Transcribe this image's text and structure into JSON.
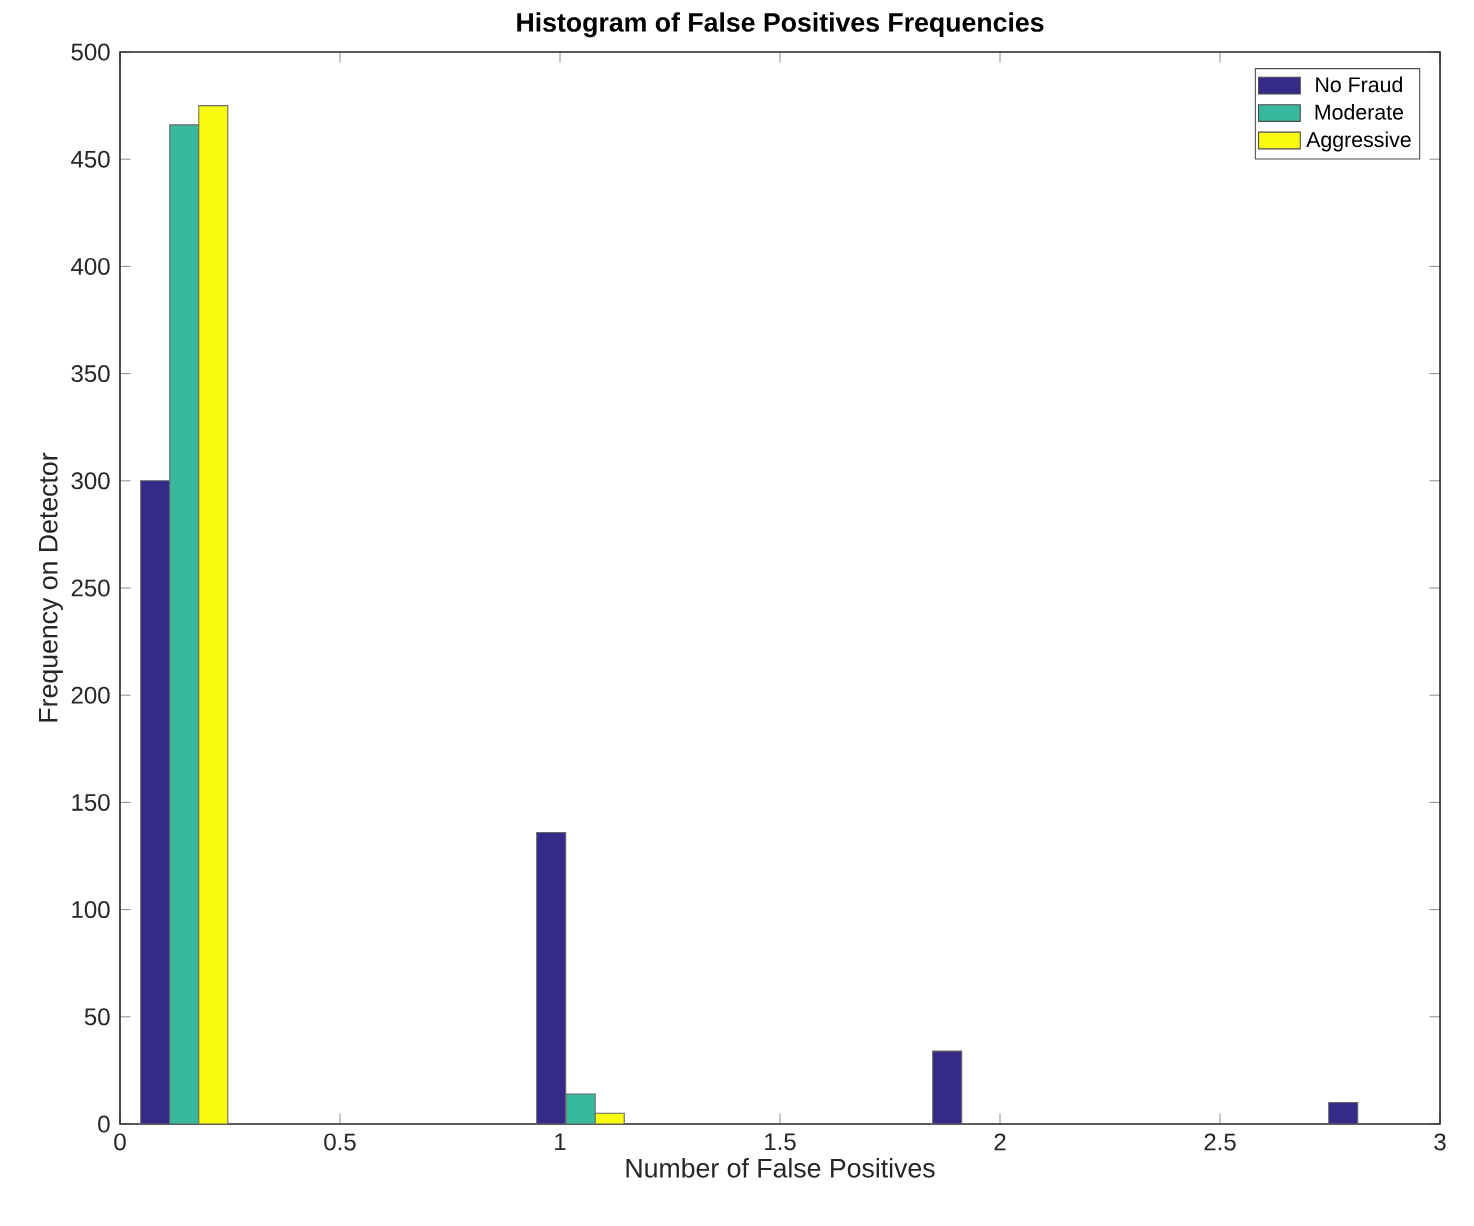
{
  "chart_data": {
    "type": "bar",
    "title": "Histogram of False Positives Frequencies",
    "xlabel": "Number of False Positives",
    "ylabel": "Frequency on Detector",
    "series": [
      {
        "name": "No Fraud",
        "color": "#352a87",
        "x": [
          0.08,
          0.98,
          1.88,
          2.78
        ],
        "values": [
          300,
          136,
          34,
          10
        ]
      },
      {
        "name": "Moderate",
        "color": "#38b99e",
        "x": [
          0.146,
          1.047
        ],
        "values": [
          466,
          14
        ]
      },
      {
        "name": "Aggressive",
        "color": "#f9fb0e",
        "x": [
          0.212,
          1.113
        ],
        "values": [
          475,
          5
        ]
      }
    ],
    "xlim": [
      0,
      3
    ],
    "ylim": [
      0,
      500
    ],
    "xticks": [
      0,
      0.5,
      1,
      1.5,
      2,
      2.5,
      3
    ],
    "yticks": [
      0,
      50,
      100,
      150,
      200,
      250,
      300,
      350,
      400,
      450,
      500
    ],
    "legend": "top right",
    "grid": false
  }
}
